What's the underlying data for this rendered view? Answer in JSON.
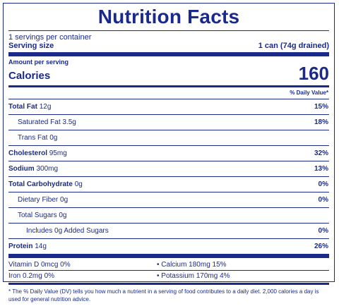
{
  "title": "Nutrition Facts",
  "servings_per_container": "1 servings per container",
  "serving_size_label": "Serving size",
  "serving_size_value": "1 can (74g drained)",
  "amount_per_serving": "Amount per serving",
  "calories_label": "Calories",
  "calories_value": "160",
  "daily_value_header": "% Daily Value*",
  "nutrients": {
    "total_fat": {
      "label": "Total Fat",
      "amount": "12g",
      "dv": "15%"
    },
    "saturated_fat": {
      "label": "Saturated Fat",
      "amount": "3.5g",
      "dv": "18%"
    },
    "trans_fat": {
      "label": "Trans Fat",
      "amount": "0g"
    },
    "cholesterol": {
      "label": "Cholesterol",
      "amount": "95mg",
      "dv": "32%"
    },
    "sodium": {
      "label": "Sodium",
      "amount": "300mg",
      "dv": "13%"
    },
    "total_carbohydrate": {
      "label": "Total Carbohydrate",
      "amount": "0g",
      "dv": "0%"
    },
    "dietary_fiber": {
      "label": "Dietary Fiber",
      "amount": "0g",
      "dv": "0%"
    },
    "total_sugars": {
      "label": "Total Sugars",
      "amount": "0g"
    },
    "added_sugars": {
      "label": "Includes 0g Added Sugars",
      "dv": "0%"
    },
    "protein": {
      "label": "Protein",
      "amount": "14g",
      "dv": "26%"
    }
  },
  "vitamins": {
    "vitamin_d": "Vitamin D 0mcg 0%",
    "calcium": "• Calcium 180mg 15%",
    "iron": "Iron 0.2mg 0%",
    "potassium": "• Potassium 170mg 4%"
  },
  "footnote": "* The % Daily Value (DV) tells you how much a nutrient in a serving of food contributes to a daily diet. 2,000 calories a day is used for general nutrition advice."
}
